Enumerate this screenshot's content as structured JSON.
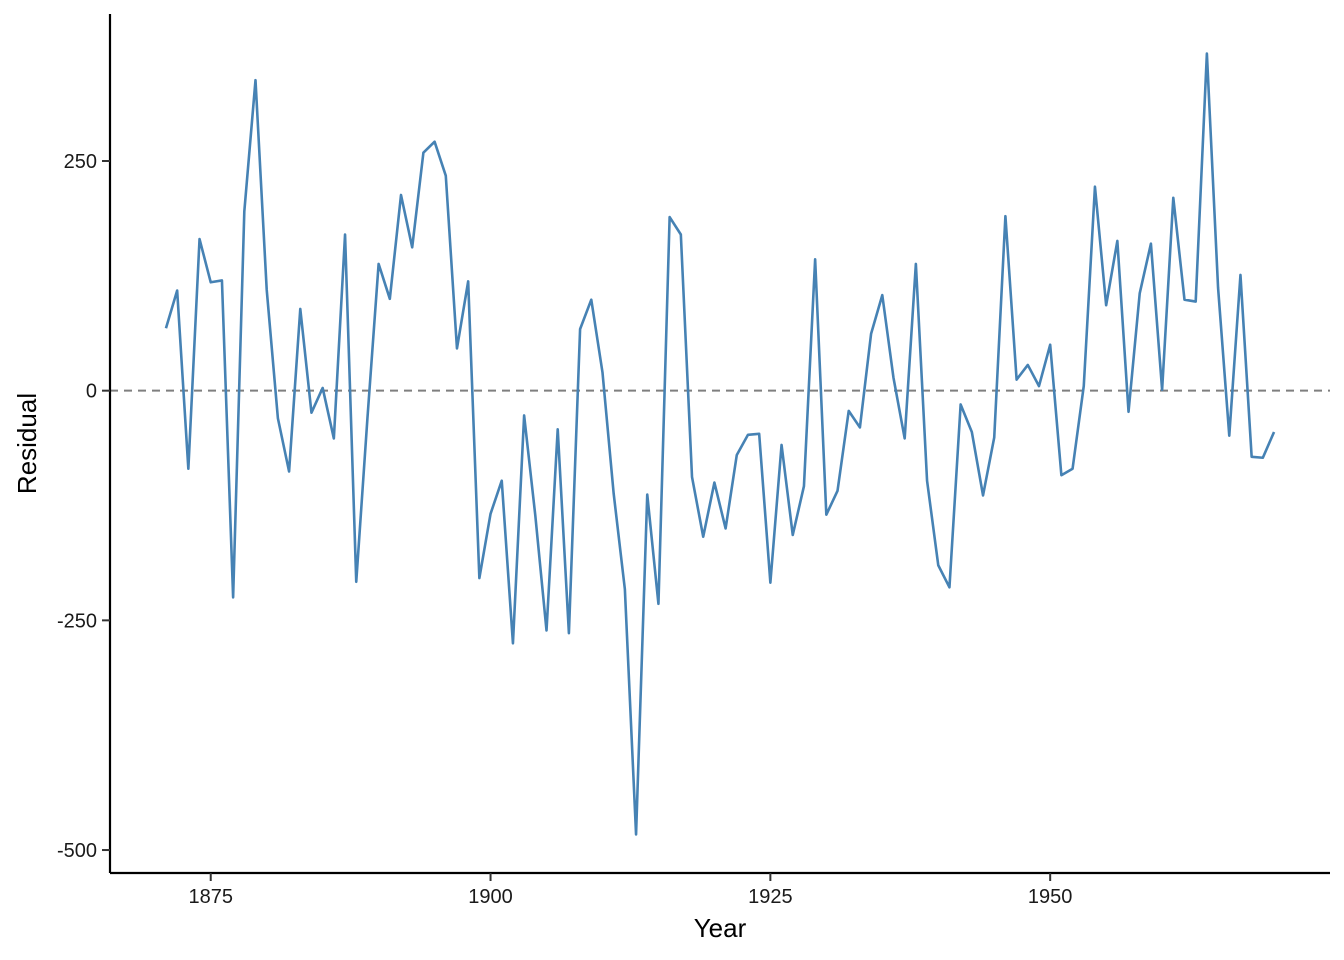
{
  "chart_data": {
    "type": "line",
    "title": "",
    "xlabel": "Year",
    "ylabel": "Residual",
    "xlim": [
      1866,
      1975
    ],
    "ylim": [
      -525,
      410
    ],
    "x_ticks": [
      1875,
      1900,
      1925,
      1950
    ],
    "y_ticks": [
      -500,
      -250,
      0,
      250
    ],
    "grid": false,
    "legend": "none",
    "reference_line": {
      "y": 0,
      "style": "dashed",
      "color": "#7f7f7f"
    },
    "series": [
      {
        "color": "#4682b4",
        "x": [
          1871,
          1872,
          1873,
          1874,
          1875,
          1876,
          1877,
          1878,
          1879,
          1880,
          1881,
          1882,
          1883,
          1884,
          1885,
          1886,
          1887,
          1888,
          1889,
          1890,
          1891,
          1892,
          1893,
          1894,
          1895,
          1896,
          1897,
          1898,
          1899,
          1900,
          1901,
          1902,
          1903,
          1904,
          1905,
          1906,
          1907,
          1908,
          1909,
          1910,
          1911,
          1912,
          1913,
          1914,
          1915,
          1916,
          1917,
          1918,
          1919,
          1920,
          1921,
          1922,
          1923,
          1924,
          1925,
          1926,
          1927,
          1928,
          1929,
          1930,
          1931,
          1932,
          1933,
          1934,
          1935,
          1936,
          1937,
          1938,
          1939,
          1940,
          1941,
          1942,
          1943,
          1944,
          1945,
          1946,
          1947,
          1948,
          1949,
          1950,
          1951,
          1952,
          1953,
          1954,
          1955,
          1956,
          1957,
          1958,
          1959,
          1960,
          1961,
          1962,
          1963,
          1964,
          1965,
          1966,
          1967,
          1968,
          1969,
          1970
        ],
        "y": [
          68,
          109,
          -85,
          165,
          118,
          120,
          -225,
          195,
          338,
          110,
          -30,
          -88,
          89,
          -24,
          3,
          -52,
          170,
          -208,
          -30,
          138,
          100,
          213,
          156,
          259,
          271,
          234,
          46,
          119,
          -204,
          -134,
          -98,
          -275,
          -27,
          -136,
          -261,
          -42,
          -264,
          67,
          99,
          20,
          -112,
          -216,
          -483,
          -113,
          -232,
          189,
          170,
          -94,
          -159,
          -100,
          -150,
          -70,
          -48,
          -47,
          -209,
          -59,
          -157,
          -104,
          143,
          -135,
          -109,
          -22,
          -40,
          62,
          104,
          14,
          -52,
          138,
          -98,
          -190,
          -214,
          -15,
          -45,
          -114,
          -51,
          190,
          12,
          28,
          5,
          50,
          -92,
          -85,
          5,
          222,
          93,
          163,
          -23,
          106,
          160,
          1,
          210,
          99,
          97,
          367,
          112,
          -49,
          126,
          -72,
          -73,
          -45
        ]
      }
    ]
  }
}
